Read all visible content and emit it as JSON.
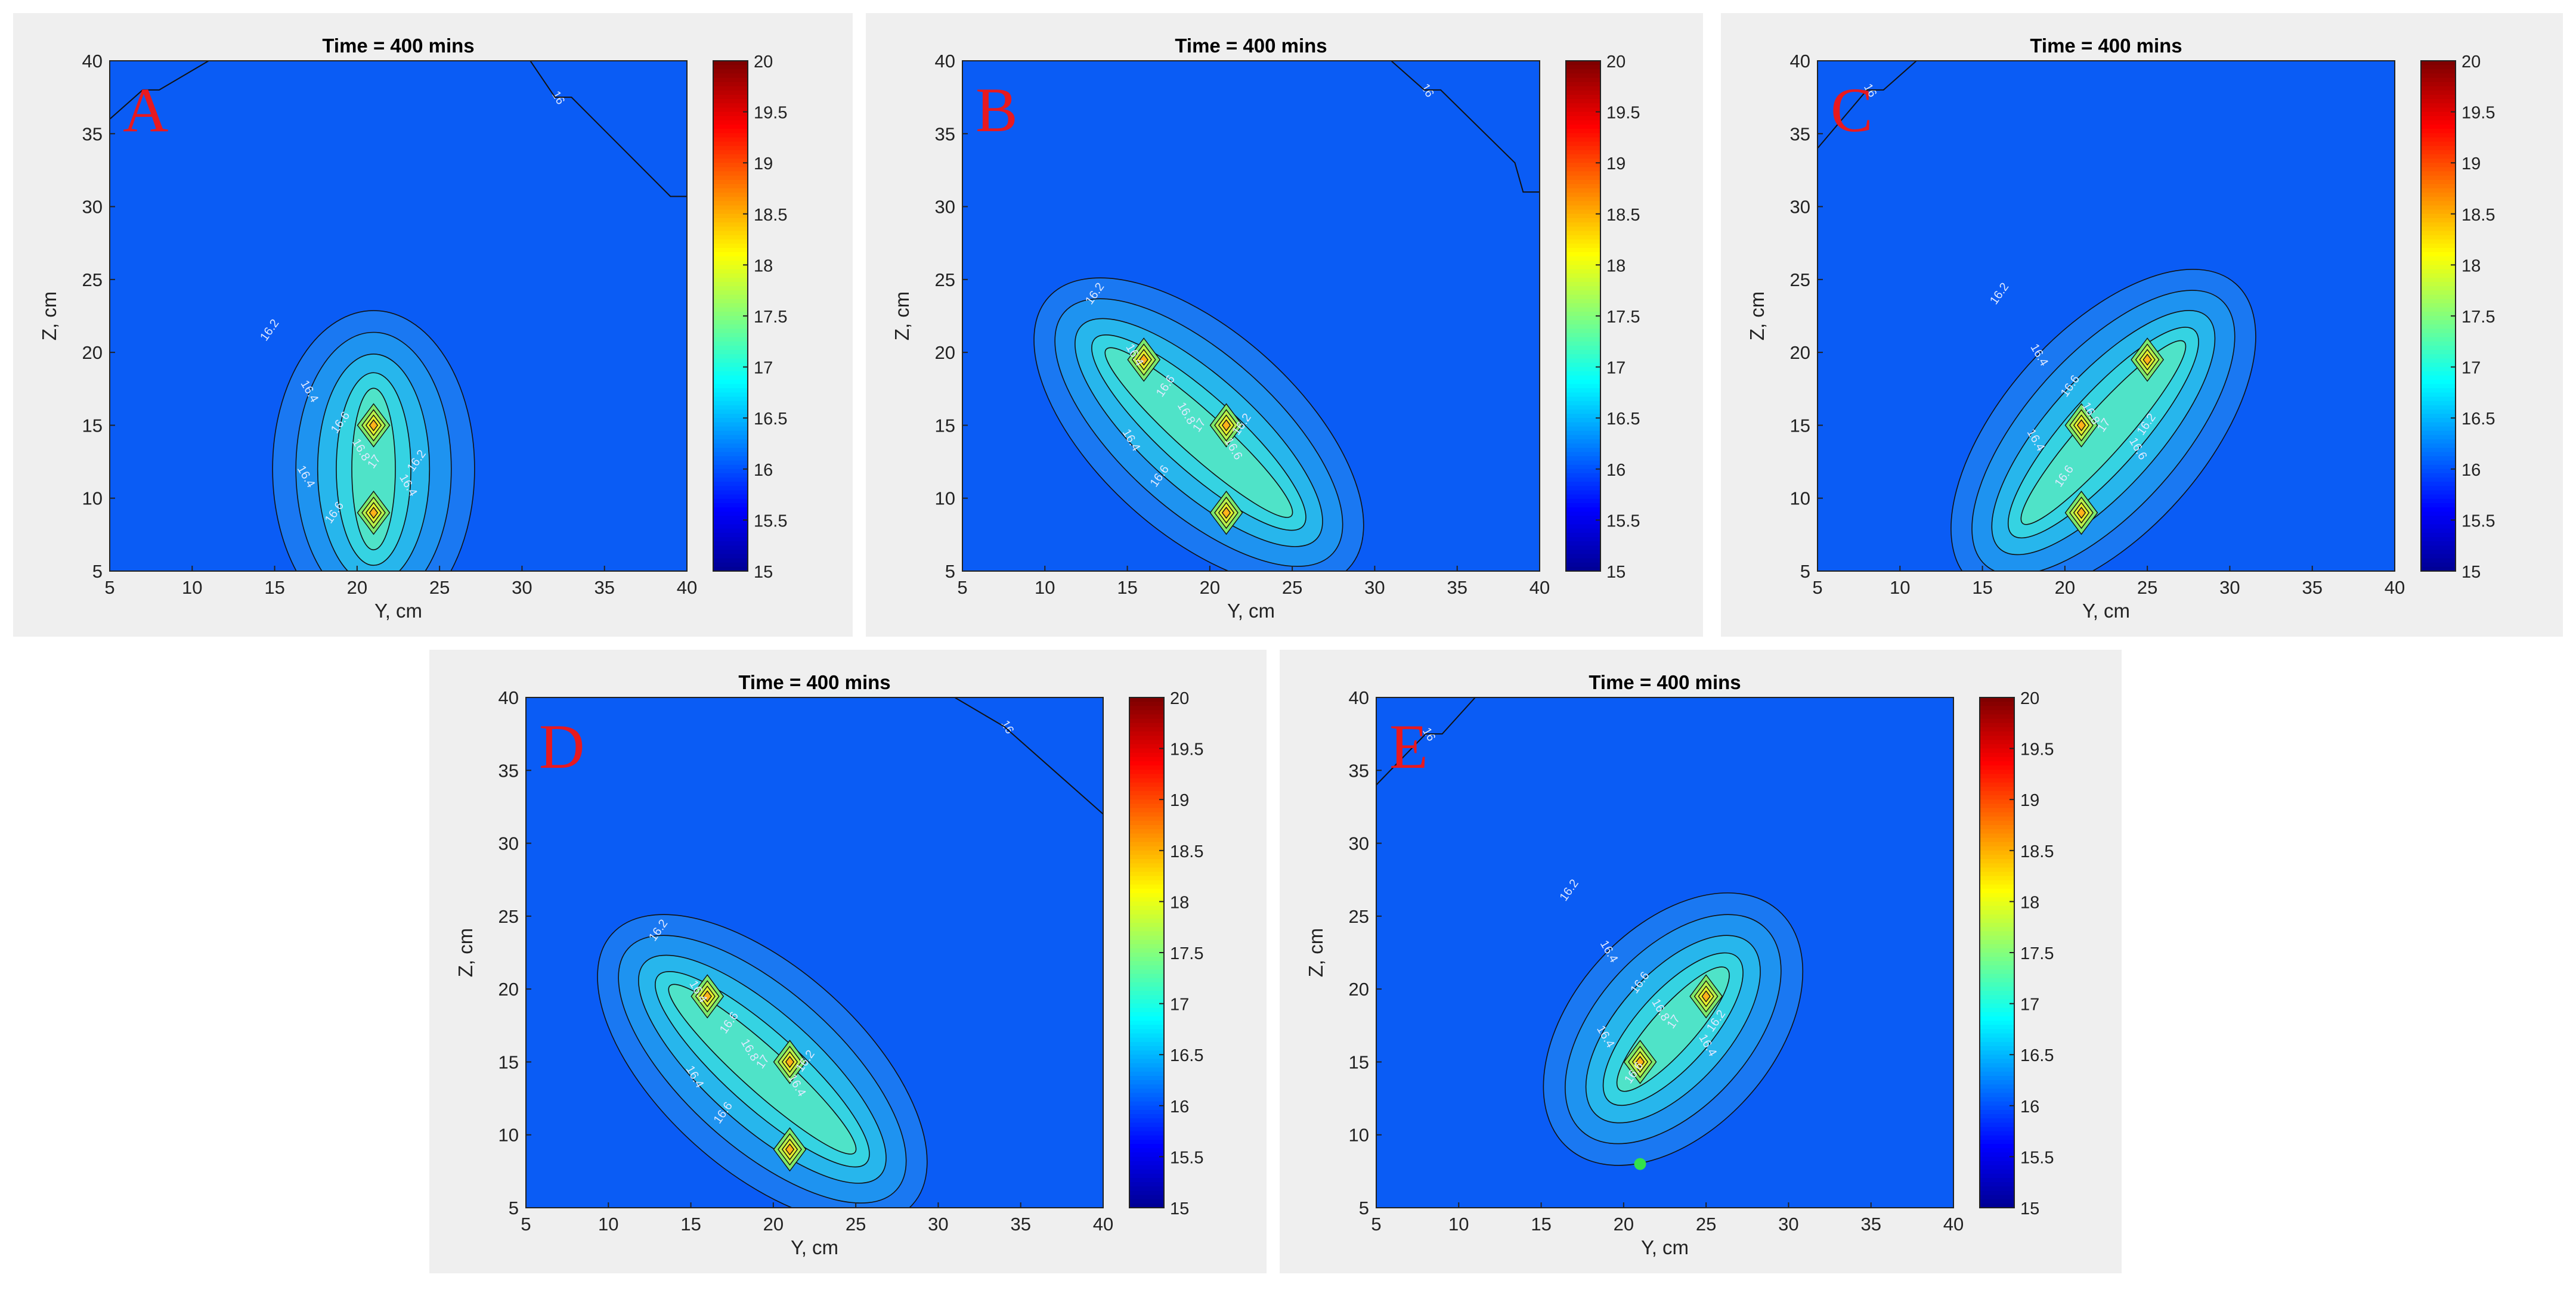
{
  "shared": {
    "colorbar_ticks": [
      "20",
      "19.5",
      "19",
      "18.5",
      "18",
      "17.5",
      "17",
      "16.5",
      "16",
      "15.5",
      "15"
    ],
    "colormap": [
      "#00008f",
      "#0000ff",
      "#0080ff",
      "#00ffff",
      "#80ff80",
      "#ffff00",
      "#ff8000",
      "#ff0000",
      "#800000"
    ],
    "plot_background": "#0a5cf5",
    "label_color": "#dfe9ff",
    "panel_letter_color": "#e8191f"
  },
  "chart_data": [
    {
      "type": "contour",
      "panel": "A",
      "title": "Time = 400 mins",
      "xlabel": "Y, cm",
      "ylabel": "Z, cm",
      "xlim": [
        5,
        40
      ],
      "ylim": [
        5,
        40
      ],
      "clim": [
        15,
        20
      ],
      "xticks": [
        "5",
        "10",
        "15",
        "20",
        "25",
        "30",
        "35",
        "40"
      ],
      "yticks": [
        "5",
        "10",
        "15",
        "20",
        "25",
        "30",
        "35",
        "40"
      ],
      "sources": [
        {
          "y": 21,
          "z": 15
        },
        {
          "y": 21,
          "z": 9
        }
      ],
      "contour_labels": [
        "16.2",
        "16.4",
        "16.6",
        "16.8",
        "17",
        "16.4",
        "16.6",
        "16.4",
        "16.2",
        "16"
      ],
      "boundary_16": [
        [
          30.5,
          40
        ],
        [
          32,
          37.5
        ],
        [
          33,
          37.5
        ],
        [
          39,
          30.7
        ],
        [
          40,
          30.7
        ]
      ],
      "corner_16": [
        [
          5,
          36
        ],
        [
          7,
          38
        ],
        [
          8,
          38
        ],
        [
          11,
          40
        ]
      ],
      "extra_marker": null
    },
    {
      "type": "contour",
      "panel": "B",
      "title": "Time = 400 mins",
      "xlabel": "Y, cm",
      "ylabel": "Z, cm",
      "xlim": [
        5,
        40
      ],
      "ylim": [
        5,
        40
      ],
      "clim": [
        15,
        20
      ],
      "xticks": [
        "5",
        "10",
        "15",
        "20",
        "25",
        "30",
        "35",
        "40"
      ],
      "yticks": [
        "5",
        "10",
        "15",
        "20",
        "25",
        "30",
        "35",
        "40"
      ],
      "sources": [
        {
          "y": 16,
          "z": 19.5
        },
        {
          "y": 21,
          "z": 15
        },
        {
          "y": 21,
          "z": 9
        }
      ],
      "contour_labels": [
        "16.2",
        "16.4",
        "16.6",
        "16.8",
        "17",
        "16.4",
        "16.6",
        "16.6",
        "16.2",
        "16"
      ],
      "boundary_16": [
        [
          31,
          40
        ],
        [
          33,
          38
        ],
        [
          34,
          38
        ],
        [
          38.5,
          33
        ],
        [
          39,
          31
        ],
        [
          40,
          31
        ]
      ],
      "corner_16": null,
      "extra_marker": null
    },
    {
      "type": "contour",
      "panel": "C",
      "title": "Time = 400 mins",
      "xlabel": "Y, cm",
      "ylabel": "Z, cm",
      "xlim": [
        5,
        40
      ],
      "ylim": [
        5,
        40
      ],
      "clim": [
        15,
        20
      ],
      "xticks": [
        "5",
        "10",
        "15",
        "20",
        "25",
        "30",
        "35",
        "40"
      ],
      "yticks": [
        "5",
        "10",
        "15",
        "20",
        "25",
        "30",
        "35",
        "40"
      ],
      "sources": [
        {
          "y": 25,
          "z": 19.5
        },
        {
          "y": 21,
          "z": 15
        },
        {
          "y": 21,
          "z": 9
        }
      ],
      "contour_labels": [
        "16.2",
        "16.4",
        "16.6",
        "16.8",
        "17",
        "16.4",
        "16.6",
        "16.6",
        "16.2",
        "16"
      ],
      "boundary_16": null,
      "corner_16": [
        [
          5,
          34
        ],
        [
          8,
          38
        ],
        [
          9,
          38
        ],
        [
          11,
          40
        ]
      ],
      "extra_marker": null
    },
    {
      "type": "contour",
      "panel": "D",
      "title": "Time = 400 mins",
      "xlabel": "Y, cm",
      "ylabel": "Z, cm",
      "xlim": [
        5,
        40
      ],
      "ylim": [
        5,
        40
      ],
      "clim": [
        15,
        20
      ],
      "xticks": [
        "5",
        "10",
        "15",
        "20",
        "25",
        "30",
        "35",
        "40"
      ],
      "yticks": [
        "5",
        "10",
        "15",
        "20",
        "25",
        "30",
        "35",
        "40"
      ],
      "sources": [
        {
          "y": 16,
          "z": 19.5
        },
        {
          "y": 21,
          "z": 15
        },
        {
          "y": 21,
          "z": 9
        }
      ],
      "contour_labels": [
        "16.2",
        "16.4",
        "16.6",
        "16.8",
        "17",
        "16.4",
        "16.6",
        "16.4",
        "16.2",
        "16"
      ],
      "boundary_16": [
        [
          31,
          40
        ],
        [
          34,
          38
        ],
        [
          40,
          32
        ]
      ],
      "corner_16": null,
      "extra_marker": null
    },
    {
      "type": "contour",
      "panel": "E",
      "title": "Time = 400 mins",
      "xlabel": "Y, cm",
      "ylabel": "Z, cm",
      "xlim": [
        5,
        40
      ],
      "ylim": [
        5,
        40
      ],
      "clim": [
        15,
        20
      ],
      "xticks": [
        "5",
        "10",
        "15",
        "20",
        "25",
        "30",
        "35",
        "40"
      ],
      "yticks": [
        "5",
        "10",
        "15",
        "20",
        "25",
        "30",
        "35",
        "40"
      ],
      "sources": [
        {
          "y": 25,
          "z": 19.5
        },
        {
          "y": 21,
          "z": 15
        }
      ],
      "contour_labels": [
        "16.2",
        "16.4",
        "16.6",
        "16.8",
        "17",
        "16.4",
        "16.6",
        "16.4",
        "16.2",
        "16"
      ],
      "boundary_16": null,
      "corner_16": [
        [
          5,
          34
        ],
        [
          8,
          37.5
        ],
        [
          9,
          37.5
        ],
        [
          11,
          40
        ]
      ],
      "extra_marker": {
        "y": 21,
        "z": 8,
        "color": "#33e14a"
      }
    }
  ]
}
